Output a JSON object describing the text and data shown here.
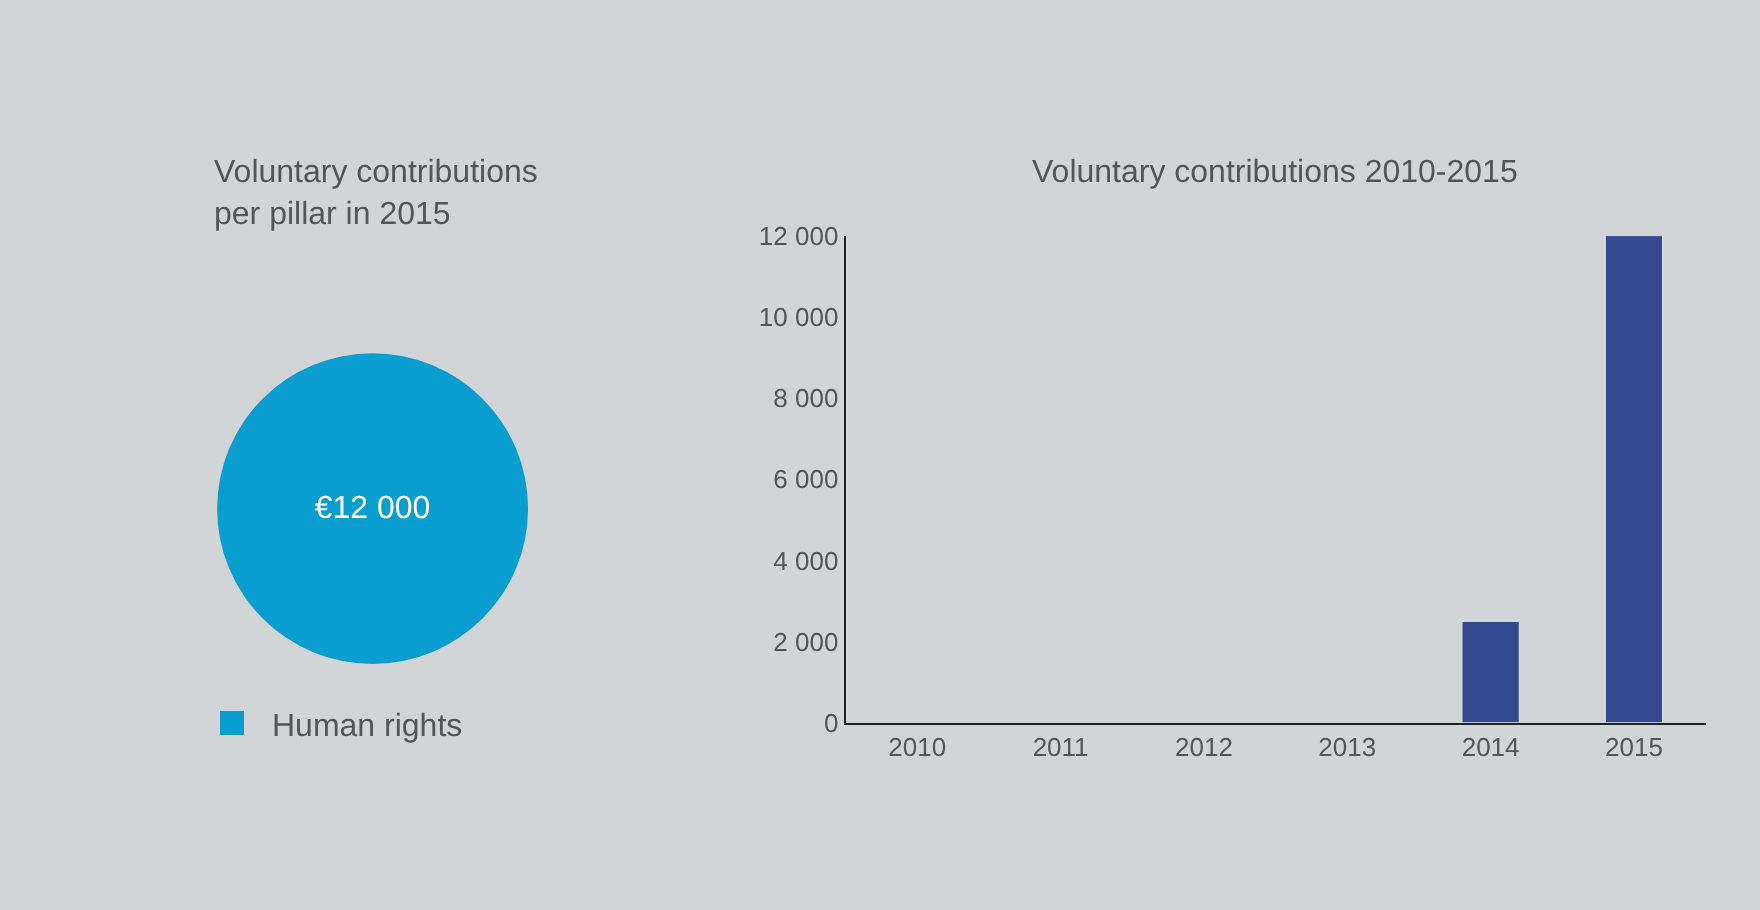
{
  "chart_data": [
    {
      "type": "pie",
      "title": "Voluntary contributions\nper pillar in 2015",
      "categories": [
        "Human rights"
      ],
      "values": [
        12000
      ],
      "colors": [
        "#0a9ed0"
      ],
      "value_labels": [
        "€12 000"
      ],
      "legend": "bottom left"
    },
    {
      "type": "bar",
      "title": "Voluntary contributions 2010-2015",
      "categories": [
        "2010",
        "2011",
        "2012",
        "2013",
        "2014",
        "2015"
      ],
      "values": [
        null,
        null,
        null,
        null,
        2500,
        12000
      ],
      "color": "#34498f",
      "ylim": [
        0,
        12000
      ],
      "yticks": [
        {
          "value": 0,
          "label": "0"
        },
        {
          "value": 2000,
          "label": "2 000"
        },
        {
          "value": 4000,
          "label": "4 000"
        },
        {
          "value": 6000,
          "label": "6 000"
        },
        {
          "value": 8000,
          "label": "8 000"
        },
        {
          "value": 10000,
          "label": "10 000"
        },
        {
          "value": 12000,
          "label": "12 000"
        }
      ],
      "grid": false
    }
  ]
}
